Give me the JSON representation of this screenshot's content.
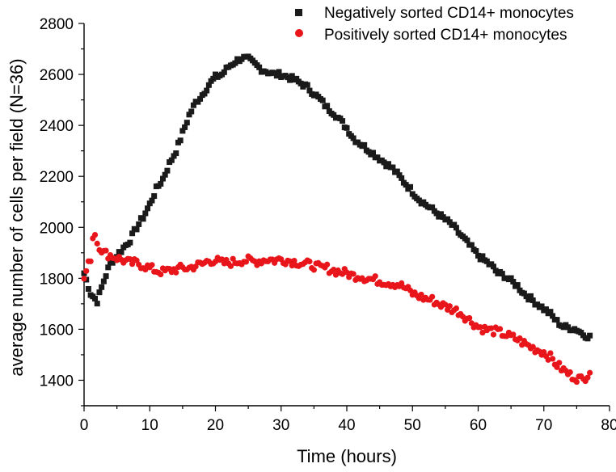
{
  "chart_data": {
    "type": "scatter",
    "xlabel": "Time (hours)",
    "ylabel": "average number of cells per field (N=36)",
    "xlim": [
      0,
      80
    ],
    "ylim": [
      1300,
      2800
    ],
    "x_ticks": [
      0,
      10,
      20,
      30,
      40,
      50,
      60,
      70,
      80
    ],
    "y_ticks": [
      1400,
      1600,
      1800,
      2000,
      2200,
      2400,
      2600,
      2800
    ],
    "grid": false,
    "legend_position": "top-right",
    "series": [
      {
        "name": "Negatively sorted CD14+ monocytes",
        "marker": "square",
        "color": "#1a1a1a",
        "anchors": [
          [
            0,
            1820
          ],
          [
            1,
            1740
          ],
          [
            2,
            1710
          ],
          [
            3,
            1790
          ],
          [
            4,
            1860
          ],
          [
            5,
            1890
          ],
          [
            6,
            1920
          ],
          [
            7,
            1950
          ],
          [
            8,
            2000
          ],
          [
            9,
            2040
          ],
          [
            10,
            2090
          ],
          [
            11,
            2150
          ],
          [
            12,
            2190
          ],
          [
            13,
            2250
          ],
          [
            14,
            2300
          ],
          [
            15,
            2370
          ],
          [
            16,
            2440
          ],
          [
            17,
            2490
          ],
          [
            18,
            2520
          ],
          [
            19,
            2560
          ],
          [
            20,
            2590
          ],
          [
            21,
            2600
          ],
          [
            22,
            2630
          ],
          [
            23,
            2650
          ],
          [
            24,
            2665
          ],
          [
            25,
            2660
          ],
          [
            26,
            2640
          ],
          [
            27,
            2620
          ],
          [
            28,
            2610
          ],
          [
            29,
            2600
          ],
          [
            30,
            2600
          ],
          [
            31,
            2590
          ],
          [
            32,
            2580
          ],
          [
            33,
            2565
          ],
          [
            34,
            2550
          ],
          [
            35,
            2525
          ],
          [
            36,
            2500
          ],
          [
            37,
            2470
          ],
          [
            38,
            2450
          ],
          [
            39,
            2420
          ],
          [
            40,
            2390
          ],
          [
            41,
            2350
          ],
          [
            42,
            2330
          ],
          [
            43,
            2310
          ],
          [
            44,
            2290
          ],
          [
            45,
            2270
          ],
          [
            46,
            2250
          ],
          [
            47,
            2230
          ],
          [
            48,
            2200
          ],
          [
            49,
            2170
          ],
          [
            50,
            2140
          ],
          [
            51,
            2110
          ],
          [
            52,
            2090
          ],
          [
            53,
            2070
          ],
          [
            54,
            2050
          ],
          [
            55,
            2030
          ],
          [
            56,
            2010
          ],
          [
            57,
            1980
          ],
          [
            58,
            1950
          ],
          [
            59,
            1920
          ],
          [
            60,
            1890
          ],
          [
            61,
            1870
          ],
          [
            62,
            1850
          ],
          [
            63,
            1820
          ],
          [
            64,
            1810
          ],
          [
            65,
            1790
          ],
          [
            66,
            1770
          ],
          [
            67,
            1740
          ],
          [
            68,
            1720
          ],
          [
            69,
            1700
          ],
          [
            70,
            1680
          ],
          [
            71,
            1660
          ],
          [
            72,
            1630
          ],
          [
            73,
            1610
          ],
          [
            74,
            1605
          ],
          [
            75,
            1600
          ],
          [
            76,
            1580
          ],
          [
            77,
            1570
          ]
        ]
      },
      {
        "name": "Positively sorted CD14+ monocytes",
        "marker": "circle",
        "color": "#e8151b",
        "anchors": [
          [
            0,
            1800
          ],
          [
            1,
            1880
          ],
          [
            1.5,
            2000
          ],
          [
            2,
            1940
          ],
          [
            3,
            1900
          ],
          [
            4,
            1890
          ],
          [
            5,
            1880
          ],
          [
            6,
            1870
          ],
          [
            7,
            1860
          ],
          [
            8,
            1860
          ],
          [
            9,
            1850
          ],
          [
            10,
            1840
          ],
          [
            11,
            1830
          ],
          [
            12,
            1825
          ],
          [
            13,
            1830
          ],
          [
            14,
            1835
          ],
          [
            15,
            1840
          ],
          [
            16,
            1840
          ],
          [
            17,
            1850
          ],
          [
            18,
            1855
          ],
          [
            19,
            1870
          ],
          [
            20,
            1870
          ],
          [
            21,
            1860
          ],
          [
            22,
            1860
          ],
          [
            23,
            1865
          ],
          [
            24,
            1870
          ],
          [
            25,
            1870
          ],
          [
            26,
            1865
          ],
          [
            27,
            1870
          ],
          [
            28,
            1875
          ],
          [
            29,
            1870
          ],
          [
            30,
            1875
          ],
          [
            31,
            1870
          ],
          [
            32,
            1865
          ],
          [
            33,
            1860
          ],
          [
            34,
            1855
          ],
          [
            35,
            1850
          ],
          [
            36,
            1840
          ],
          [
            37,
            1840
          ],
          [
            38,
            1830
          ],
          [
            39,
            1825
          ],
          [
            40,
            1820
          ],
          [
            41,
            1810
          ],
          [
            42,
            1810
          ],
          [
            43,
            1800
          ],
          [
            44,
            1795
          ],
          [
            45,
            1790
          ],
          [
            46,
            1785
          ],
          [
            47,
            1780
          ],
          [
            48,
            1775
          ],
          [
            49,
            1760
          ],
          [
            50,
            1740
          ],
          [
            51,
            1730
          ],
          [
            52,
            1720
          ],
          [
            53,
            1715
          ],
          [
            54,
            1700
          ],
          [
            55,
            1690
          ],
          [
            56,
            1680
          ],
          [
            57,
            1670
          ],
          [
            58,
            1650
          ],
          [
            59,
            1630
          ],
          [
            60,
            1610
          ],
          [
            61,
            1600
          ],
          [
            62,
            1595
          ],
          [
            63,
            1590
          ],
          [
            64,
            1580
          ],
          [
            65,
            1570
          ],
          [
            66,
            1560
          ],
          [
            67,
            1545
          ],
          [
            68,
            1530
          ],
          [
            69,
            1520
          ],
          [
            70,
            1510
          ],
          [
            71,
            1490
          ],
          [
            72,
            1460
          ],
          [
            73,
            1440
          ],
          [
            74,
            1420
          ],
          [
            75,
            1410
          ],
          [
            76,
            1400
          ],
          [
            77,
            1440
          ]
        ]
      }
    ]
  }
}
